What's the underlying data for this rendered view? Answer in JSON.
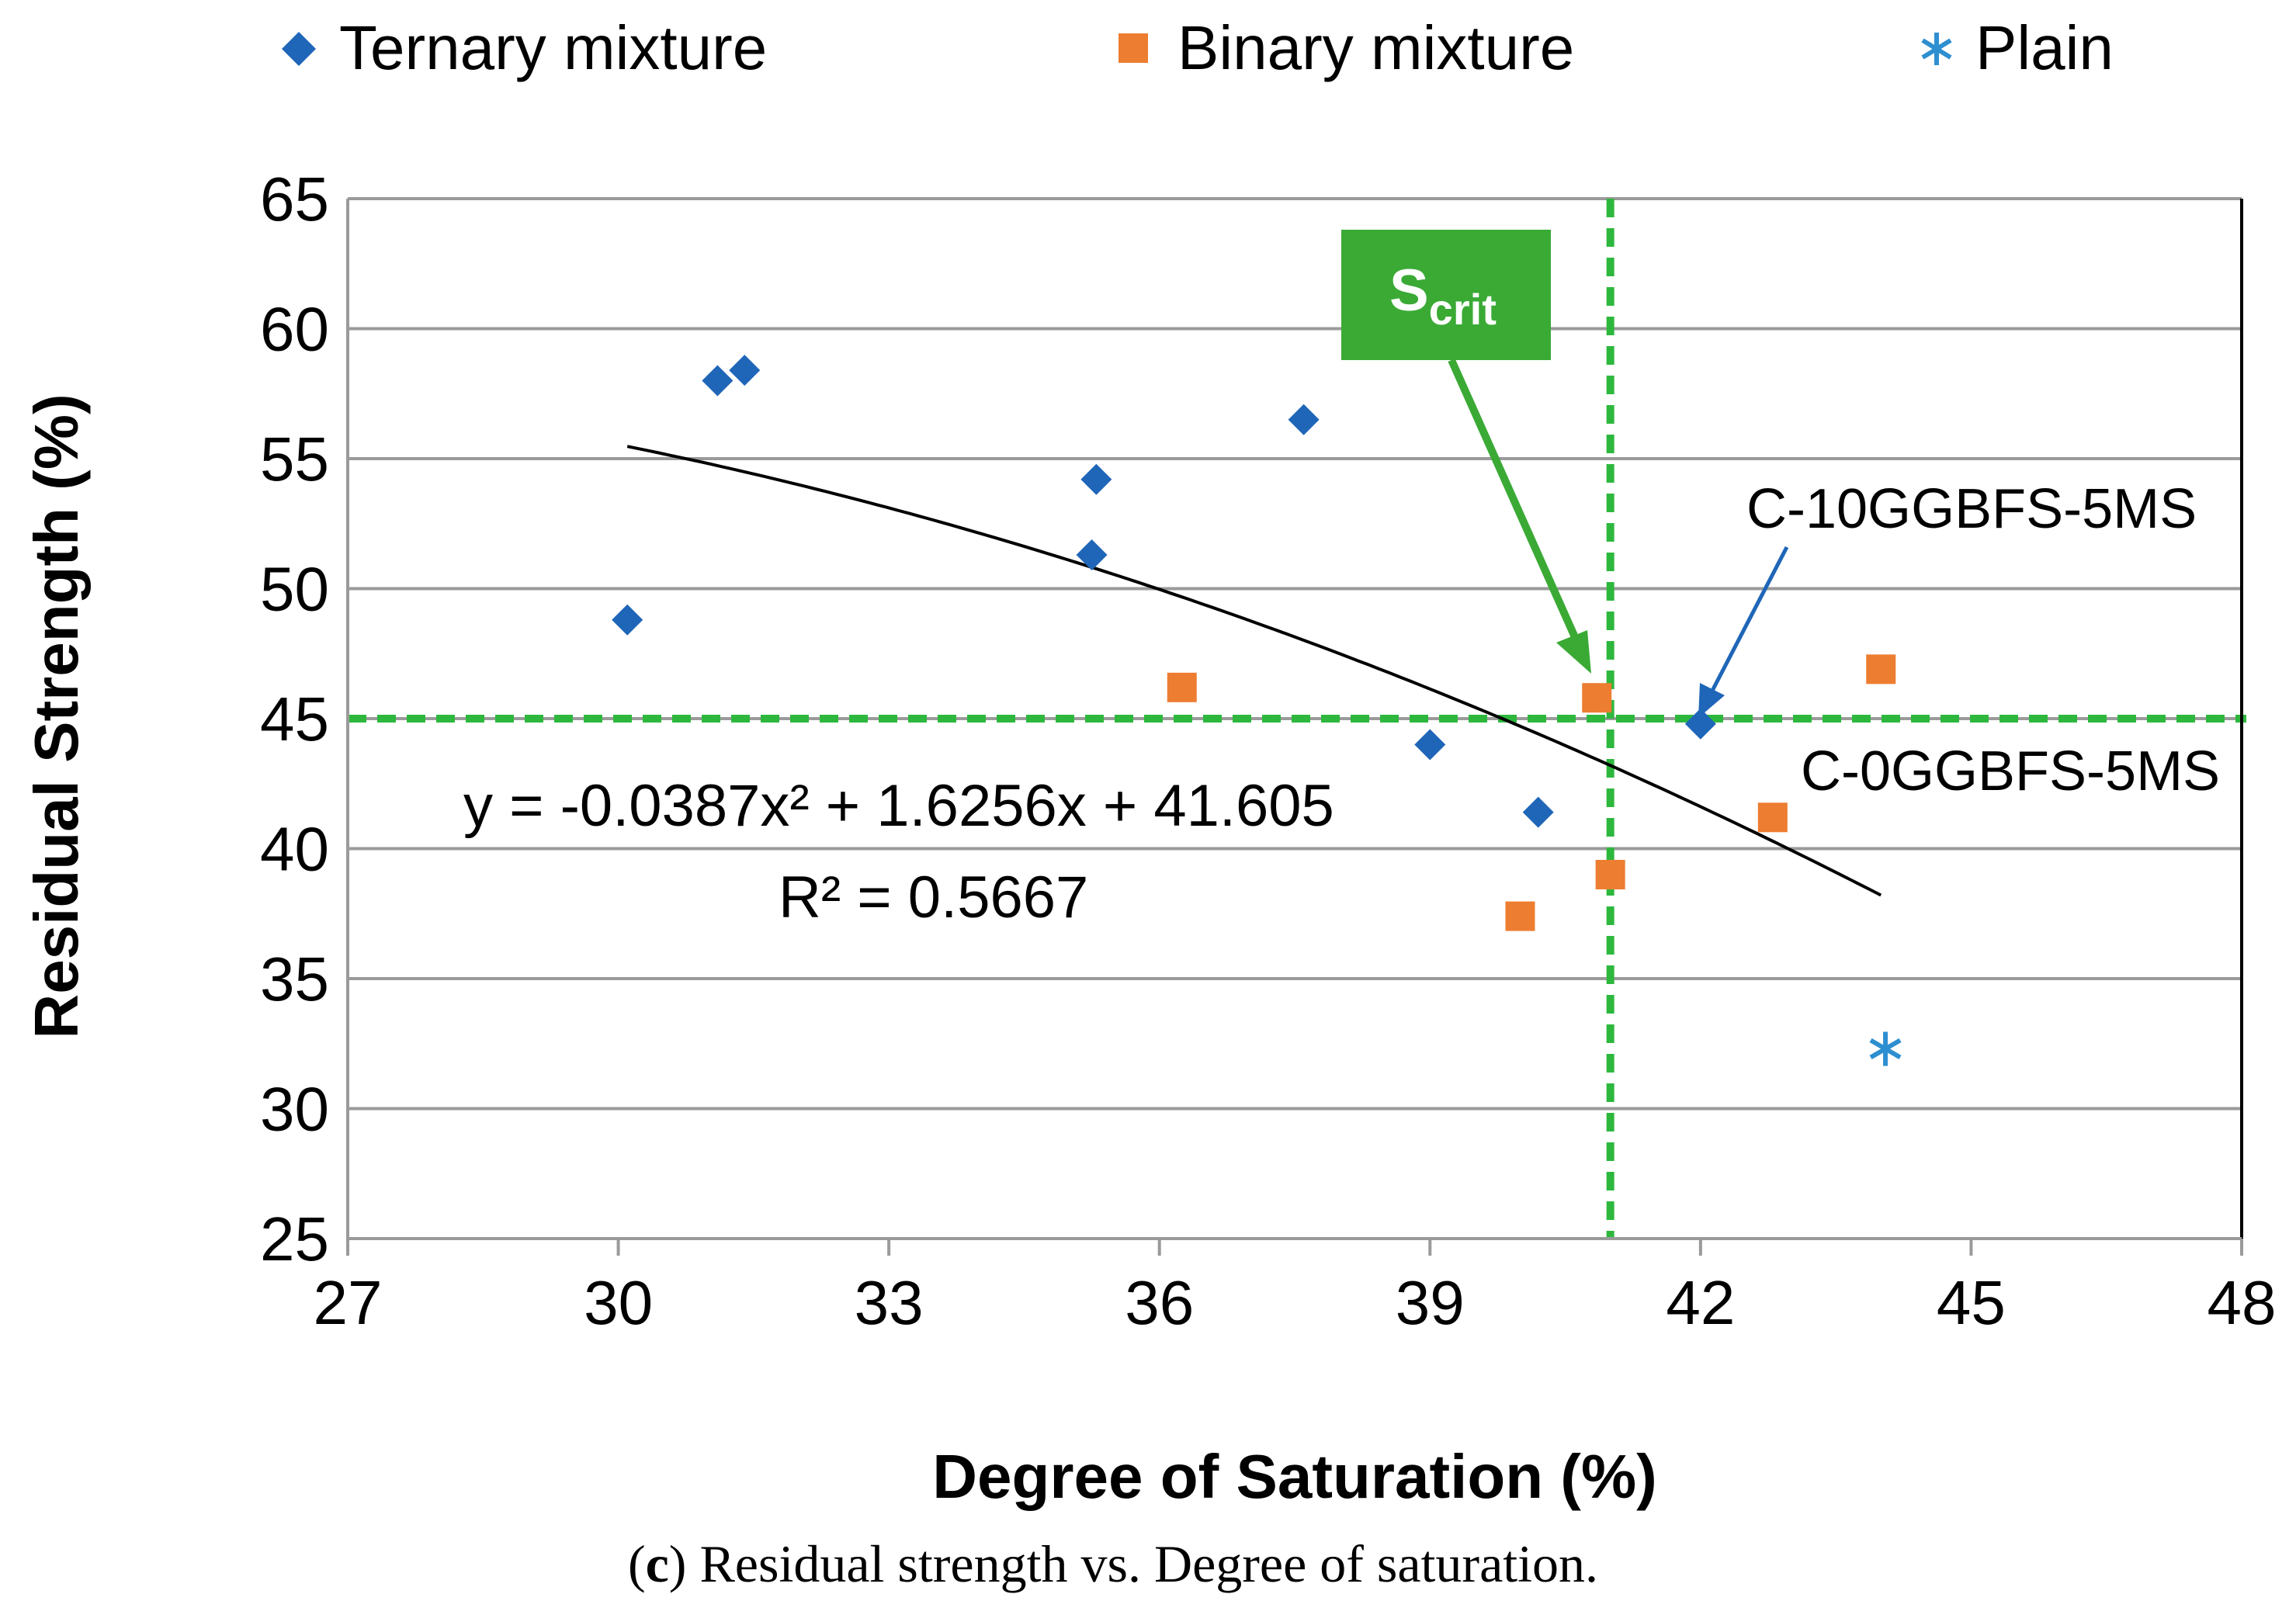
{
  "chart_data": {
    "type": "scatter",
    "title": "",
    "xlabel": "Degree of Saturation (%)",
    "ylabel": "Residual Strength (%)",
    "xlim": [
      27,
      48
    ],
    "ylim": [
      25,
      65
    ],
    "xticks": [
      27,
      30,
      33,
      36,
      39,
      42,
      45,
      48
    ],
    "yticks": [
      25,
      30,
      35,
      40,
      45,
      50,
      55,
      60,
      65
    ],
    "grid": "horizontal",
    "legend_position": "top",
    "series": [
      {
        "name": "Ternary mixture",
        "marker": "diamond",
        "color": "#1F66B8",
        "points": [
          [
            30.1,
            48.8
          ],
          [
            31.1,
            58.0
          ],
          [
            31.4,
            58.4
          ],
          [
            35.3,
            54.2
          ],
          [
            35.25,
            51.3
          ],
          [
            37.6,
            56.5
          ],
          [
            39.0,
            44.0
          ],
          [
            40.2,
            41.4
          ],
          [
            42.0,
            44.8
          ]
        ]
      },
      {
        "name": "Binary mixture",
        "marker": "square",
        "color": "#ED7D31",
        "points": [
          [
            36.25,
            46.2
          ],
          [
            40.0,
            37.4
          ],
          [
            40.85,
            45.8
          ],
          [
            41.0,
            39.0
          ],
          [
            42.8,
            41.2
          ],
          [
            44.0,
            46.9
          ]
        ]
      },
      {
        "name": "Plain",
        "marker": "asterisk",
        "color": "#2E8FD0",
        "points": [
          [
            44.05,
            32.3
          ]
        ]
      }
    ],
    "trendline": {
      "type": "polynomial",
      "a": -0.0387,
      "b": 1.6256,
      "c": 41.605,
      "x_range": [
        30.1,
        44.0
      ],
      "color": "#000000",
      "equation": "y = -0.0387x² + 1.6256x + 41.605",
      "r2": "R² = 0.5667"
    },
    "reference_lines": [
      {
        "orientation": "horizontal",
        "value": 45,
        "color": "#2DB83D",
        "style": "dashed"
      },
      {
        "orientation": "vertical",
        "value": 41.0,
        "color": "#2DB83D",
        "style": "dashed"
      }
    ],
    "annotations": [
      {
        "name": "scrit",
        "main": "S",
        "sub": "crit",
        "box_color": "#3AAA35",
        "text_color": "#FFFFFF",
        "points_to": [
          40.85,
          45.8
        ]
      },
      {
        "name": "c10",
        "text": "C-10GGBFS-5MS",
        "points_to": [
          42.0,
          44.8
        ],
        "arrow_color": "#1F66B8"
      },
      {
        "name": "c0",
        "text": "C-0GGBFS-5MS"
      }
    ]
  },
  "caption": {
    "letter": "c",
    "text": " Residual strength vs. Degree of saturation."
  }
}
